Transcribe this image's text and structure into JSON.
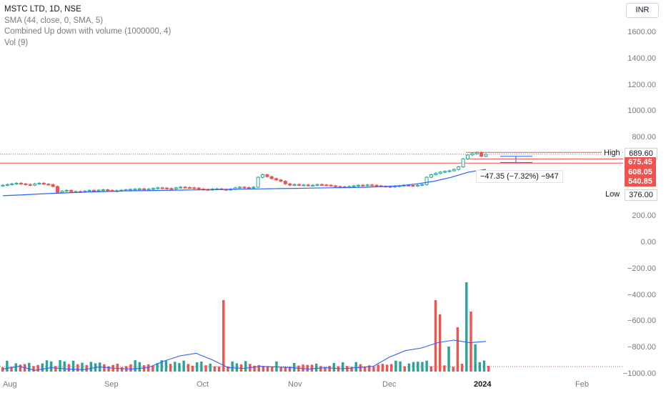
{
  "legend": {
    "symbol": "MSTC LTD, 1D, NSE",
    "sma": "SMA (44, close, 0, SMA, 5)",
    "combined": "Combined Up down with volume (1000000, 4)",
    "vol": "Vol (9)"
  },
  "currency": "INR",
  "price_axis": {
    "ticks": [
      "1600.00",
      "1400.00",
      "1200.00",
      "1000.00",
      "800.00",
      "200.00",
      "0.00",
      "−200.00",
      "−400.00",
      "−600.00",
      "−800.00",
      "−1000.00"
    ]
  },
  "time_axis": {
    "labels": [
      "Aug",
      "Sep",
      "Oct",
      "Nov",
      "Dec",
      "2024",
      "Feb"
    ]
  },
  "markers": {
    "high_label": "High",
    "high_value": "689.60",
    "last_price": "675.45",
    "line_608": "608.05",
    "line_540": "540.85",
    "low_label": "Low",
    "low_value": "376.00"
  },
  "measure_text": "−47.35 (−7.32%) −947",
  "colors": {
    "up": "#26a69a",
    "down": "#ef5350",
    "sma": "#2962ff",
    "dotted": "#ef5350",
    "grid": "#f0f3fa"
  },
  "chart_data": {
    "type": "candlestick",
    "title": "MSTC LTD, 1D, NSE",
    "price_range": [
      -1000,
      1700
    ],
    "x_labels": [
      "Aug",
      "Sep",
      "Oct",
      "Nov",
      "Dec",
      "2024",
      "Feb"
    ],
    "closes": [
      440,
      445,
      450,
      455,
      450,
      445,
      440,
      450,
      455,
      448,
      445,
      430,
      385,
      395,
      400,
      390,
      392,
      388,
      395,
      400,
      398,
      402,
      405,
      400,
      395,
      398,
      402,
      405,
      408,
      410,
      412,
      405,
      410,
      415,
      420,
      418,
      415,
      412,
      420,
      425,
      422,
      420,
      418,
      410,
      408,
      405,
      410,
      412,
      408,
      405,
      410,
      420,
      425,
      422,
      420,
      425,
      500,
      520,
      505,
      490,
      480,
      470,
      450,
      440,
      445,
      440,
      442,
      438,
      440,
      445,
      442,
      440,
      435,
      430,
      428,
      425,
      430,
      435,
      440,
      438,
      442,
      440,
      435,
      432,
      430,
      428,
      432,
      436,
      440,
      438,
      435,
      440,
      445,
      500,
      520,
      530,
      540,
      545,
      550,
      560,
      580,
      640,
      670,
      680,
      689,
      660,
      675
    ],
    "sma44": [
      360,
      365,
      372,
      378,
      383,
      388,
      392,
      396,
      398,
      400,
      402,
      404,
      406,
      408,
      410,
      412,
      414,
      416,
      418,
      420,
      422,
      424,
      430,
      435,
      450,
      470,
      500,
      540,
      560
    ],
    "volume_indicator": [
      -960,
      -940,
      -970,
      -950,
      -960,
      -965,
      -945,
      -955,
      -960,
      -950,
      -900,
      -860,
      -840,
      -890,
      -950,
      -955,
      -940,
      -945,
      -950,
      -960,
      -950,
      -958,
      -950,
      -940,
      -870,
      -820,
      -800,
      -760,
      -740,
      -760,
      -750
    ]
  }
}
